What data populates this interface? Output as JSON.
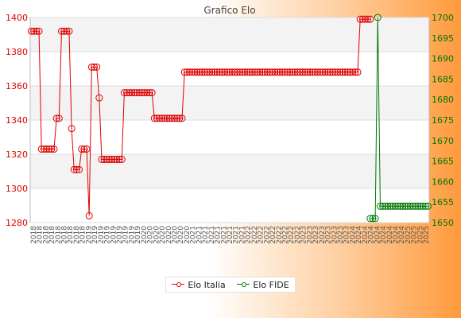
{
  "chart_data": {
    "type": "line",
    "title": "Grafico Elo",
    "xlabel": "",
    "ylabel": "",
    "y_left": {
      "lim": [
        1280,
        1400
      ],
      "ticks": [
        1280,
        1300,
        1320,
        1340,
        1360,
        1380,
        1400
      ]
    },
    "y_right": {
      "lim": [
        1650,
        1700
      ],
      "ticks": [
        1650,
        1655,
        1660,
        1665,
        1670,
        1675,
        1680,
        1685,
        1690,
        1695,
        1700
      ]
    },
    "grid": true,
    "legend_position": "bottom",
    "series": [
      {
        "name": "Elo Italia",
        "axis": "left",
        "color": "#dd0000",
        "values": [
          1392,
          1392,
          1392,
          1392,
          1323,
          1323,
          1323,
          1323,
          1323,
          1323,
          1341,
          1341,
          1392,
          1392,
          1392,
          1392,
          1335,
          1311,
          1311,
          1311,
          1323,
          1323,
          1323,
          1284,
          1371,
          1371,
          1371,
          1353,
          1317,
          1317,
          1317,
          1317,
          1317,
          1317,
          1317,
          1317,
          1317,
          1356,
          1356,
          1356,
          1356,
          1356,
          1356,
          1356,
          1356,
          1356,
          1356,
          1356,
          1356,
          1341,
          1341,
          1341,
          1341,
          1341,
          1341,
          1341,
          1341,
          1341,
          1341,
          1341,
          1341,
          1368,
          1368,
          1368,
          1368,
          1368,
          1368,
          1368,
          1368,
          1368,
          1368,
          1368,
          1368,
          1368,
          1368,
          1368,
          1368,
          1368,
          1368,
          1368,
          1368,
          1368,
          1368,
          1368,
          1368,
          1368,
          1368,
          1368,
          1368,
          1368,
          1368,
          1368,
          1368,
          1368,
          1368,
          1368,
          1368,
          1368,
          1368,
          1368,
          1368,
          1368,
          1368,
          1368,
          1368,
          1368,
          1368,
          1368,
          1368,
          1368,
          1368,
          1368,
          1368,
          1368,
          1368,
          1368,
          1368,
          1368,
          1368,
          1368,
          1368,
          1368,
          1368,
          1368,
          1368,
          1368,
          1368,
          1368,
          1368,
          1368,
          1368,
          1399,
          1399,
          1399,
          1399,
          1399,
          null,
          null,
          null,
          null,
          null,
          null,
          null,
          null,
          null,
          null,
          null,
          null,
          null,
          null,
          null,
          null,
          null,
          null,
          null,
          null,
          null,
          null,
          null
        ]
      },
      {
        "name": "Elo FIDE",
        "axis": "right",
        "color": "#007700",
        "values": [
          null,
          null,
          null,
          null,
          null,
          null,
          null,
          null,
          null,
          null,
          null,
          null,
          null,
          null,
          null,
          null,
          null,
          null,
          null,
          null,
          null,
          null,
          null,
          null,
          null,
          null,
          null,
          null,
          null,
          null,
          null,
          null,
          null,
          null,
          null,
          null,
          null,
          null,
          null,
          null,
          null,
          null,
          null,
          null,
          null,
          null,
          null,
          null,
          null,
          null,
          null,
          null,
          null,
          null,
          null,
          null,
          null,
          null,
          null,
          null,
          null,
          null,
          null,
          null,
          null,
          null,
          null,
          null,
          null,
          null,
          null,
          null,
          null,
          null,
          null,
          null,
          null,
          null,
          null,
          null,
          null,
          null,
          null,
          null,
          null,
          null,
          null,
          null,
          null,
          null,
          null,
          null,
          null,
          null,
          null,
          null,
          null,
          null,
          null,
          null,
          null,
          null,
          null,
          null,
          null,
          null,
          null,
          null,
          null,
          null,
          null,
          null,
          null,
          null,
          null,
          null,
          null,
          null,
          null,
          null,
          null,
          null,
          null,
          null,
          null,
          null,
          null,
          null,
          null,
          null,
          null,
          null,
          null,
          null,
          null,
          1651,
          1651,
          1651,
          1700,
          1654,
          1654,
          1654,
          1654,
          1654,
          1654,
          1654,
          1654,
          1654,
          1654,
          1654,
          1654,
          1654,
          1654,
          1654,
          1654,
          1654,
          1654,
          1654,
          1654
        ]
      }
    ],
    "x_tick_labels": [
      "2018",
      "2018",
      "2018",
      "2018",
      "2018",
      "2018",
      "2018",
      "2018",
      "2018",
      "2019",
      "2019",
      "2019",
      "2019",
      "2019",
      "2019",
      "2019",
      "2019",
      "2019",
      "2020",
      "2020",
      "2020",
      "2020",
      "2020",
      "2020",
      "2020",
      "2020",
      "2021",
      "2021",
      "2021",
      "2021",
      "2021",
      "2021",
      "2021",
      "2021",
      "2021",
      "2022",
      "2022",
      "2022",
      "2022",
      "2022",
      "2022",
      "2022",
      "2022",
      "2022",
      "2023",
      "2023",
      "2023",
      "2023",
      "2023",
      "2023",
      "2023",
      "2023",
      "2024",
      "2024",
      "2024",
      "2024",
      "2024",
      "2024",
      "2024",
      "2024",
      "2024",
      "2025",
      "2025",
      "2025",
      "2025"
    ]
  }
}
